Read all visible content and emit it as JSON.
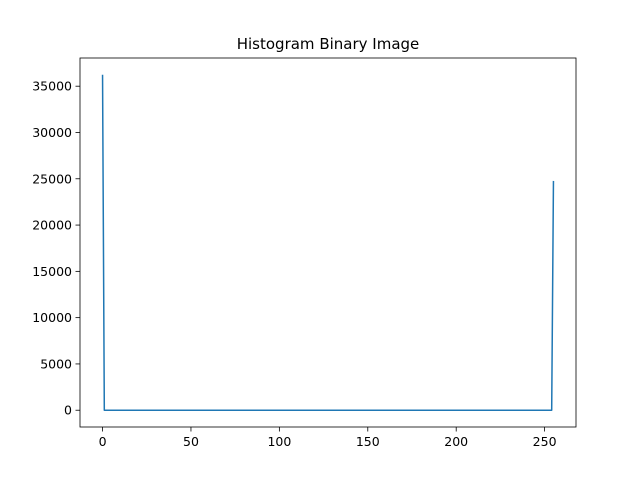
{
  "chart_data": {
    "type": "line",
    "title": "Histogram Binary Image",
    "xlabel": "",
    "ylabel": "",
    "xlim": [
      -12.75,
      267.75
    ],
    "ylim": [
      -1812,
      38046
    ],
    "x_ticks": [
      0,
      50,
      100,
      150,
      200,
      250
    ],
    "y_ticks": [
      0,
      5000,
      10000,
      15000,
      20000,
      25000,
      30000,
      35000
    ],
    "grid": false,
    "legend": "none",
    "series": [
      {
        "color": "#1f77b4",
        "points": [
          [
            0,
            36234
          ],
          [
            1,
            0
          ],
          [
            254,
            0
          ],
          [
            255,
            24766
          ]
        ]
      }
    ]
  }
}
